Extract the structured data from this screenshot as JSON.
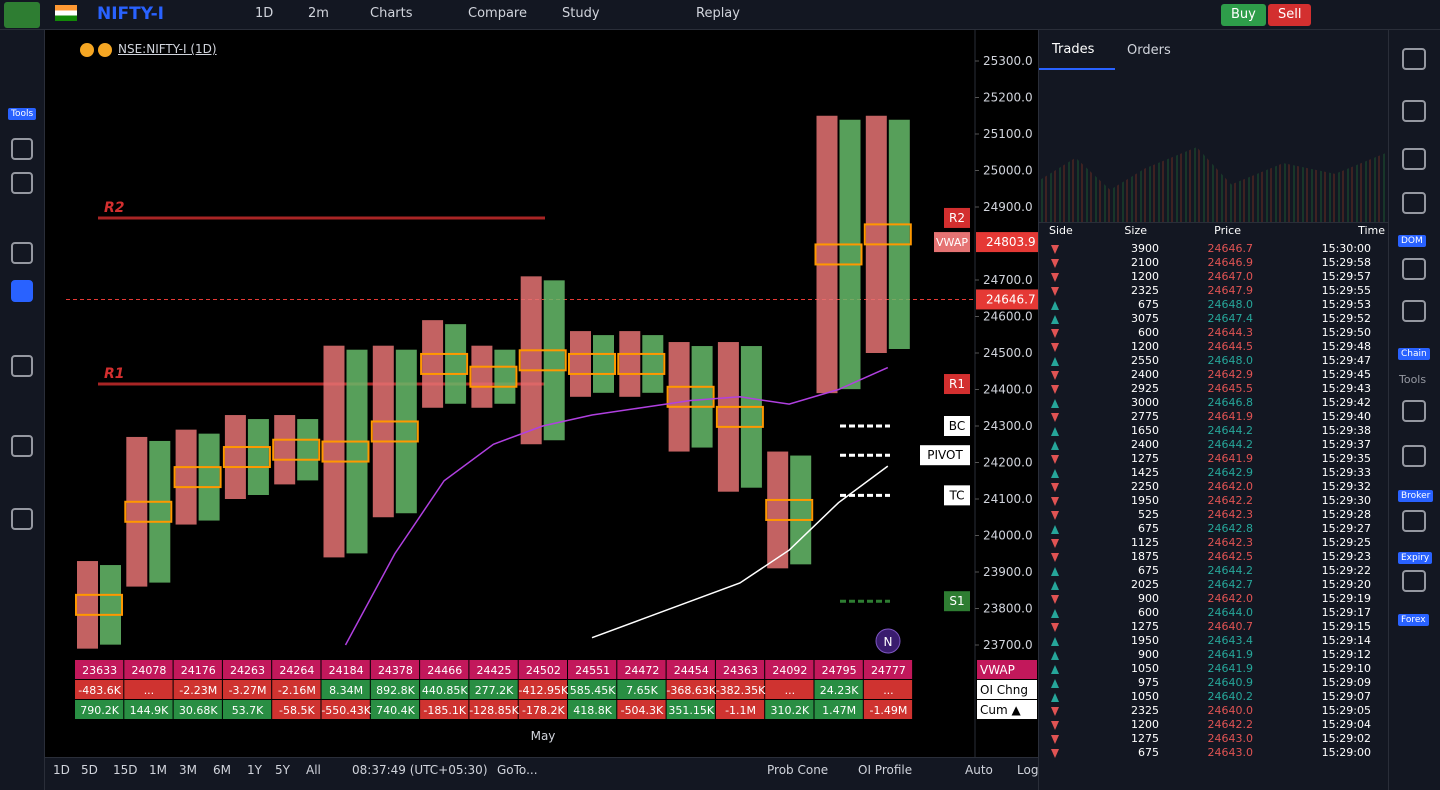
{
  "toolbar": {
    "symbol": "NIFTY-I",
    "interval": "1D",
    "timeframe": "2m",
    "items": [
      "Charts",
      "Compare",
      "Study",
      "Replay"
    ],
    "buy": "Buy",
    "sell": "Sell"
  },
  "sidebar": {
    "tools_label": "Tools"
  },
  "chart": {
    "legend": "NSE:NIFTY-I (1D)",
    "x_label": "May",
    "price_ticks": [
      {
        "value": 25300,
        "label": "25300.0"
      },
      {
        "value": 25200,
        "label": "25200.0"
      },
      {
        "value": 25100,
        "label": "25100.0"
      },
      {
        "value": 25000,
        "label": "25000.0"
      },
      {
        "value": 24900,
        "label": "24900.0"
      },
      {
        "value": 24700,
        "label": "24700.0"
      },
      {
        "value": 24600,
        "label": "24600.0"
      },
      {
        "value": 24500,
        "label": "24500.0"
      },
      {
        "value": 24400,
        "label": "24400.0"
      },
      {
        "value": 24300,
        "label": "24300.0"
      },
      {
        "value": 24200,
        "label": "24200.0"
      },
      {
        "value": 24100,
        "label": "24100.0"
      },
      {
        "value": 24000,
        "label": "24000.0"
      },
      {
        "value": 23900,
        "label": "23900.0"
      },
      {
        "value": 23800,
        "label": "23800.0"
      },
      {
        "value": 23700,
        "label": "23700.0"
      }
    ],
    "levels": [
      {
        "label": "R2",
        "value": 24870,
        "color": "#d32f2f"
      },
      {
        "label": "R1",
        "value": 24415,
        "color": "#d32f2f"
      },
      {
        "label": "BC",
        "value": 24300,
        "color": "#ffffff"
      },
      {
        "label": "PIVOT",
        "value": 24220,
        "color": "#ffffff"
      },
      {
        "label": "TC",
        "value": 24110,
        "color": "#ffffff"
      },
      {
        "label": "S1",
        "value": 23820,
        "color": "#2e7d32"
      }
    ],
    "vwap": {
      "label": "VWAP",
      "value": 24803.9,
      "value_label": "24803.9"
    },
    "last": {
      "value": 24646.7,
      "value_label": "24646.7"
    },
    "candles": [
      {
        "low": 23690,
        "high": 23930
      },
      {
        "low": 23860,
        "high": 24270
      },
      {
        "low": 24030,
        "high": 24290
      },
      {
        "low": 24100,
        "high": 24330
      },
      {
        "low": 24140,
        "high": 24330
      },
      {
        "low": 23940,
        "high": 24520
      },
      {
        "low": 24050,
        "high": 24520
      },
      {
        "low": 24350,
        "high": 24590
      },
      {
        "low": 24350,
        "high": 24520
      },
      {
        "low": 24250,
        "high": 24710
      },
      {
        "low": 24380,
        "high": 24560
      },
      {
        "low": 24380,
        "high": 24560
      },
      {
        "low": 24230,
        "high": 24530
      },
      {
        "low": 24120,
        "high": 24530
      },
      {
        "low": 23910,
        "high": 24230
      },
      {
        "low": 24390,
        "high": 25150
      },
      {
        "low": 24500,
        "high": 25150
      }
    ],
    "vwap_line": [
      null,
      null,
      null,
      null,
      null,
      23700,
      23950,
      24150,
      24250,
      24300,
      24330,
      24350,
      24370,
      24380,
      24360,
      24400,
      24460
    ],
    "ma_line": [
      null,
      null,
      null,
      null,
      null,
      null,
      null,
      null,
      null,
      null,
      23720,
      23770,
      23820,
      23870,
      23960,
      24090,
      24190
    ],
    "table": {
      "row_labels": [
        "VWAP",
        "OI Chng",
        "Cum ▲"
      ],
      "rows": [
        [
          "23633",
          "24078",
          "24176",
          "24263",
          "24264",
          "24184",
          "24378",
          "24466",
          "24425",
          "24502",
          "24551",
          "24472",
          "24454",
          "24363",
          "24092",
          "24795",
          "24777"
        ],
        [
          "-483.6K",
          "...",
          "-2.23M",
          "-3.27M",
          "-2.16M",
          "8.34M",
          "892.8K",
          "440.85K",
          "277.2K",
          "-412.95K",
          "585.45K",
          "7.65K",
          "-368.63K",
          "-382.35K",
          "...",
          "24.23K",
          "..."
        ],
        [
          "790.2K",
          "144.9K",
          "30.68K",
          "53.7K",
          "-58.5K",
          "-550.43K",
          "740.4K",
          "-185.1K",
          "-128.85K",
          "-178.2K",
          "418.8K",
          "-504.3K",
          "351.15K",
          "-1.1M",
          "310.2K",
          "1.47M",
          "-1.49M"
        ]
      ]
    },
    "marker": "N"
  },
  "bottom_bar": {
    "ranges": [
      "1D",
      "5D",
      "15D",
      "1M",
      "3M",
      "6M",
      "1Y",
      "5Y",
      "All"
    ],
    "clock": "08:37:49 (UTC+05:30)",
    "goto": "GoTo...",
    "right": [
      "Prob Cone",
      "OI Profile",
      "Auto",
      "Log"
    ]
  },
  "trades_panel": {
    "tabs": [
      "Trades",
      "Orders"
    ],
    "columns": [
      "Side",
      "Size",
      "Price",
      "Time"
    ],
    "rows": [
      {
        "size": "3900",
        "price": "24646.7",
        "time": "15:30:00",
        "color": "#e05353"
      },
      {
        "size": "2100",
        "price": "24646.9",
        "time": "15:29:58",
        "color": "#e05353"
      },
      {
        "size": "1200",
        "price": "24647.0",
        "time": "15:29:57",
        "color": "#e05353"
      },
      {
        "size": "2325",
        "price": "24647.9",
        "time": "15:29:55",
        "color": "#e05353"
      },
      {
        "size": "675",
        "price": "24648.0",
        "time": "15:29:53",
        "color": "#26a69a"
      },
      {
        "size": "3075",
        "price": "24647.4",
        "time": "15:29:52",
        "color": "#26a69a"
      },
      {
        "size": "600",
        "price": "24644.3",
        "time": "15:29:50",
        "color": "#e05353"
      },
      {
        "size": "1200",
        "price": "24644.5",
        "time": "15:29:48",
        "color": "#e05353"
      },
      {
        "size": "2550",
        "price": "24648.0",
        "time": "15:29:47",
        "color": "#26a69a"
      },
      {
        "size": "2400",
        "price": "24642.9",
        "time": "15:29:45",
        "color": "#e05353"
      },
      {
        "size": "2925",
        "price": "24645.5",
        "time": "15:29:43",
        "color": "#e05353"
      },
      {
        "size": "3000",
        "price": "24646.8",
        "time": "15:29:42",
        "color": "#26a69a"
      },
      {
        "size": "2775",
        "price": "24641.9",
        "time": "15:29:40",
        "color": "#e05353"
      },
      {
        "size": "1650",
        "price": "24644.2",
        "time": "15:29:38",
        "color": "#26a69a"
      },
      {
        "size": "2400",
        "price": "24644.2",
        "time": "15:29:37",
        "color": "#26a69a"
      },
      {
        "size": "1275",
        "price": "24641.9",
        "time": "15:29:35",
        "color": "#e05353"
      },
      {
        "size": "1425",
        "price": "24642.9",
        "time": "15:29:33",
        "color": "#26a69a"
      },
      {
        "size": "2250",
        "price": "24642.0",
        "time": "15:29:32",
        "color": "#e05353"
      },
      {
        "size": "1950",
        "price": "24642.2",
        "time": "15:29:30",
        "color": "#e05353"
      },
      {
        "size": "525",
        "price": "24642.3",
        "time": "15:29:28",
        "color": "#e05353"
      },
      {
        "size": "675",
        "price": "24642.8",
        "time": "15:29:27",
        "color": "#26a69a"
      },
      {
        "size": "1125",
        "price": "24642.3",
        "time": "15:29:25",
        "color": "#e05353"
      },
      {
        "size": "1875",
        "price": "24642.5",
        "time": "15:29:23",
        "color": "#e05353"
      },
      {
        "size": "675",
        "price": "24644.2",
        "time": "15:29:22",
        "color": "#26a69a"
      },
      {
        "size": "2025",
        "price": "24642.7",
        "time": "15:29:20",
        "color": "#26a69a"
      },
      {
        "size": "900",
        "price": "24642.0",
        "time": "15:29:19",
        "color": "#e05353"
      },
      {
        "size": "600",
        "price": "24644.0",
        "time": "15:29:17",
        "color": "#26a69a"
      },
      {
        "size": "1275",
        "price": "24640.7",
        "time": "15:29:15",
        "color": "#e05353"
      },
      {
        "size": "1950",
        "price": "24643.4",
        "time": "15:29:14",
        "color": "#26a69a"
      },
      {
        "size": "900",
        "price": "24641.9",
        "time": "15:29:12",
        "color": "#26a69a"
      },
      {
        "size": "1050",
        "price": "24641.9",
        "time": "15:29:10",
        "color": "#26a69a"
      },
      {
        "size": "975",
        "price": "24640.9",
        "time": "15:29:09",
        "color": "#26a69a"
      },
      {
        "size": "1050",
        "price": "24640.2",
        "time": "15:29:07",
        "color": "#26a69a"
      },
      {
        "size": "2325",
        "price": "24640.0",
        "time": "15:29:05",
        "color": "#e05353"
      },
      {
        "size": "1200",
        "price": "24642.2",
        "time": "15:29:04",
        "color": "#e05353"
      },
      {
        "size": "1275",
        "price": "24643.0",
        "time": "15:29:02",
        "color": "#e05353"
      },
      {
        "size": "675",
        "price": "24643.0",
        "time": "15:29:00",
        "color": "#e05353"
      }
    ]
  },
  "right_rail": {
    "labels": [
      "DOM",
      "Chain",
      "Tools",
      "Broker",
      "Expiry",
      "Forex"
    ]
  }
}
